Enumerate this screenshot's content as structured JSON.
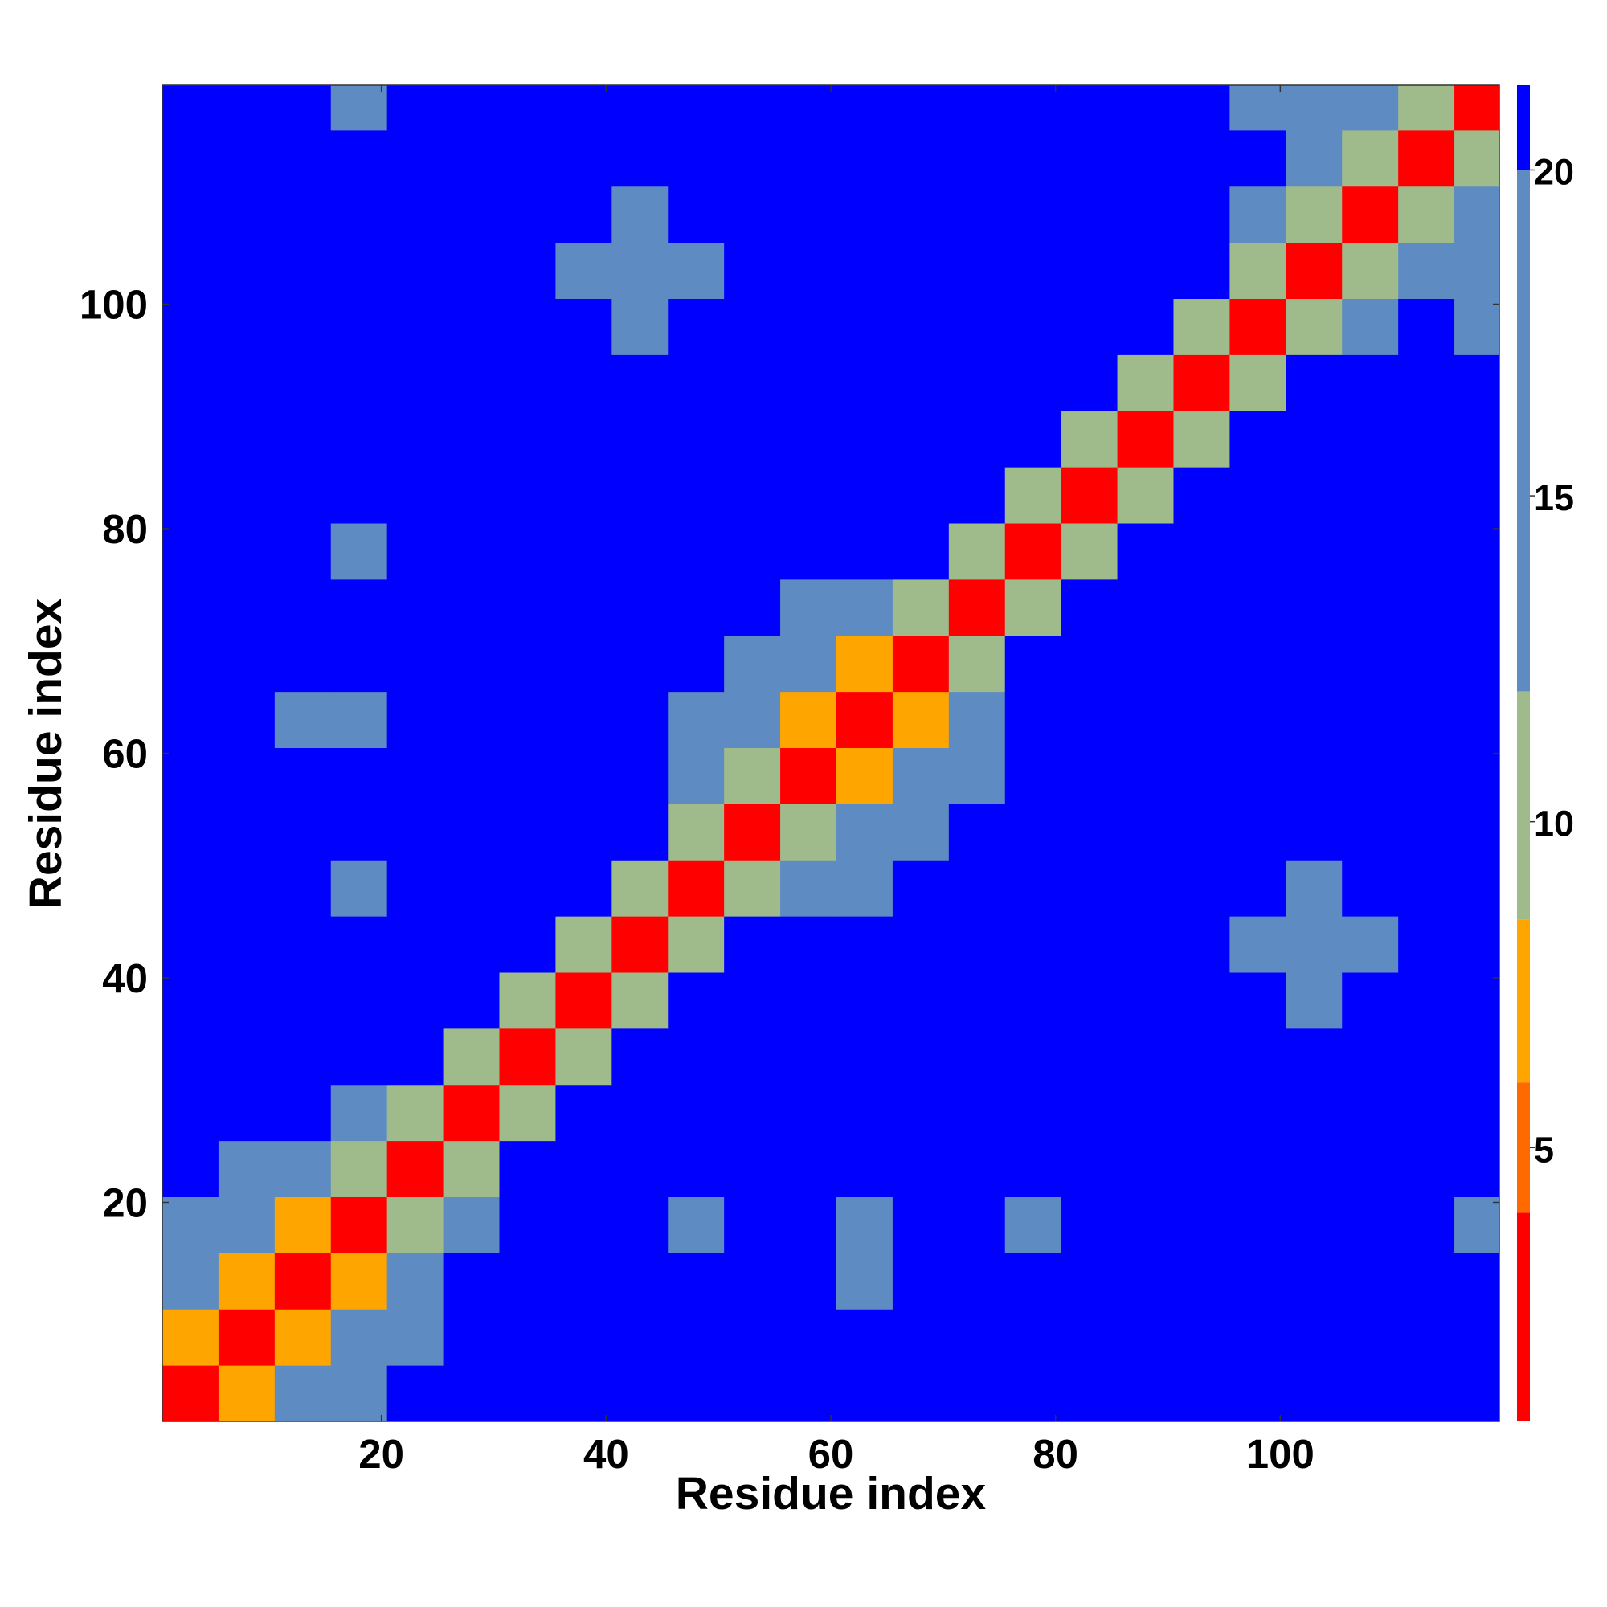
{
  "chart_data": {
    "type": "heatmap",
    "x_label": "Residue index",
    "y_label": "Residue index",
    "xlim": [
      0.5,
      119.5
    ],
    "ylim": [
      0.5,
      119.5
    ],
    "xticks": [
      20,
      40,
      60,
      80,
      100
    ],
    "yticks": [
      20,
      40,
      60,
      80,
      100
    ],
    "xbins": [
      0.5,
      5.5,
      10.5,
      15.5,
      20.5,
      25.5,
      30.5,
      35.5,
      40.5,
      45.5,
      50.5,
      55.5,
      60.5,
      65.5,
      70.5,
      75.5,
      80.5,
      85.5,
      90.5,
      95.5,
      100.5,
      105.5,
      110.5,
      115.5,
      119.5
    ],
    "ybins": [
      0.5,
      5.5,
      10.5,
      15.5,
      20.5,
      25.5,
      30.5,
      35.5,
      40.5,
      45.5,
      50.5,
      55.5,
      60.5,
      65.5,
      70.5,
      75.5,
      80.5,
      85.5,
      90.5,
      95.5,
      100.5,
      105.5,
      110.5,
      115.5,
      119.5
    ],
    "values": [
      [
        3,
        7,
        15,
        17,
        21,
        21,
        21,
        21,
        21,
        21,
        21,
        21,
        21,
        21,
        21,
        21,
        21,
        21,
        21,
        21,
        21,
        21,
        21,
        21
      ],
      [
        7,
        3,
        7,
        15,
        17,
        21,
        21,
        21,
        21,
        21,
        21,
        21,
        21,
        21,
        21,
        21,
        21,
        21,
        21,
        21,
        21,
        21,
        21,
        21
      ],
      [
        15,
        7,
        3,
        7,
        15,
        21,
        21,
        21,
        21,
        21,
        21,
        21,
        12,
        21,
        21,
        21,
        21,
        21,
        21,
        21,
        21,
        21,
        21,
        21
      ],
      [
        17,
        15,
        7,
        3,
        9,
        15,
        21,
        21,
        21,
        17,
        21,
        21,
        15,
        21,
        21,
        18,
        21,
        21,
        21,
        21,
        21,
        21,
        21,
        18
      ],
      [
        21,
        17,
        15,
        9,
        3,
        9,
        21,
        21,
        21,
        21,
        21,
        21,
        21,
        21,
        21,
        21,
        21,
        21,
        21,
        21,
        21,
        21,
        21,
        21
      ],
      [
        21,
        21,
        21,
        15,
        9,
        3,
        9,
        21,
        21,
        21,
        21,
        21,
        21,
        21,
        21,
        21,
        21,
        21,
        21,
        21,
        21,
        21,
        21,
        21
      ],
      [
        21,
        21,
        21,
        21,
        21,
        9,
        3,
        9,
        21,
        21,
        21,
        21,
        21,
        21,
        21,
        21,
        21,
        21,
        21,
        21,
        21,
        21,
        21,
        21
      ],
      [
        21,
        21,
        21,
        21,
        21,
        21,
        9,
        3,
        9,
        21,
        21,
        21,
        21,
        21,
        21,
        21,
        21,
        21,
        21,
        21,
        17,
        21,
        21,
        21
      ],
      [
        21,
        21,
        21,
        21,
        21,
        21,
        21,
        9,
        3,
        9,
        21,
        21,
        21,
        21,
        21,
        21,
        21,
        21,
        21,
        17,
        17,
        17,
        21,
        21
      ],
      [
        21,
        21,
        21,
        17,
        21,
        21,
        21,
        21,
        9,
        3,
        9,
        15,
        14,
        21,
        21,
        21,
        21,
        21,
        21,
        21,
        17,
        21,
        21,
        21
      ],
      [
        21,
        21,
        21,
        21,
        21,
        21,
        21,
        21,
        21,
        9,
        3,
        9,
        15,
        17,
        21,
        21,
        21,
        21,
        21,
        21,
        21,
        21,
        21,
        21
      ],
      [
        21,
        21,
        21,
        21,
        21,
        21,
        21,
        21,
        21,
        15,
        9,
        3,
        7,
        15,
        17,
        21,
        21,
        21,
        21,
        21,
        21,
        21,
        21,
        21
      ],
      [
        21,
        21,
        12,
        15,
        21,
        21,
        21,
        21,
        21,
        14,
        15,
        7,
        3,
        7,
        15,
        21,
        21,
        21,
        21,
        21,
        21,
        21,
        21,
        21
      ],
      [
        21,
        21,
        21,
        21,
        21,
        21,
        21,
        21,
        21,
        21,
        17,
        15,
        7,
        3,
        9,
        21,
        21,
        21,
        21,
        21,
        21,
        21,
        21,
        21
      ],
      [
        21,
        21,
        21,
        21,
        21,
        21,
        21,
        21,
        21,
        21,
        21,
        17,
        15,
        9,
        3,
        9,
        21,
        21,
        21,
        21,
        21,
        21,
        21,
        21
      ],
      [
        21,
        21,
        21,
        18,
        21,
        21,
        21,
        21,
        21,
        21,
        21,
        21,
        21,
        21,
        9,
        3,
        9,
        21,
        21,
        21,
        21,
        21,
        21,
        21
      ],
      [
        21,
        21,
        21,
        21,
        21,
        21,
        21,
        21,
        21,
        21,
        21,
        21,
        21,
        21,
        21,
        9,
        3,
        9,
        21,
        21,
        21,
        21,
        21,
        21
      ],
      [
        21,
        21,
        21,
        21,
        21,
        21,
        21,
        21,
        21,
        21,
        21,
        21,
        21,
        21,
        21,
        21,
        9,
        3,
        9,
        21,
        21,
        21,
        21,
        21
      ],
      [
        21,
        21,
        21,
        21,
        21,
        21,
        21,
        21,
        21,
        21,
        21,
        21,
        21,
        21,
        21,
        21,
        21,
        9,
        3,
        9,
        21,
        21,
        21,
        21
      ],
      [
        21,
        21,
        21,
        21,
        21,
        21,
        21,
        21,
        17,
        21,
        21,
        21,
        21,
        21,
        21,
        21,
        21,
        21,
        9,
        3,
        9,
        15,
        21,
        18
      ],
      [
        21,
        21,
        21,
        21,
        21,
        21,
        21,
        17,
        17,
        17,
        21,
        21,
        21,
        21,
        21,
        21,
        21,
        21,
        21,
        9,
        3,
        9,
        15,
        17
      ],
      [
        21,
        21,
        21,
        21,
        21,
        21,
        21,
        21,
        17,
        21,
        21,
        21,
        21,
        21,
        21,
        21,
        21,
        21,
        21,
        15,
        9,
        3,
        9,
        15
      ],
      [
        21,
        21,
        21,
        21,
        21,
        21,
        21,
        21,
        21,
        21,
        21,
        21,
        21,
        21,
        21,
        21,
        21,
        21,
        21,
        21,
        15,
        9,
        3,
        9
      ],
      [
        21,
        21,
        21,
        18,
        21,
        21,
        21,
        21,
        21,
        21,
        21,
        21,
        21,
        21,
        21,
        21,
        21,
        21,
        21,
        18,
        17,
        15,
        9,
        3
      ]
    ],
    "colorbar": {
      "levels": [
        0.8,
        4,
        6,
        8.5,
        12,
        20,
        21.3
      ],
      "colors": [
        "#ff0000",
        "#ff6a00",
        "#ffa500",
        "#9fbb8c",
        "#5e8cc2",
        "#0000ff"
      ],
      "ticks": [
        5,
        10,
        15,
        20
      ]
    }
  }
}
